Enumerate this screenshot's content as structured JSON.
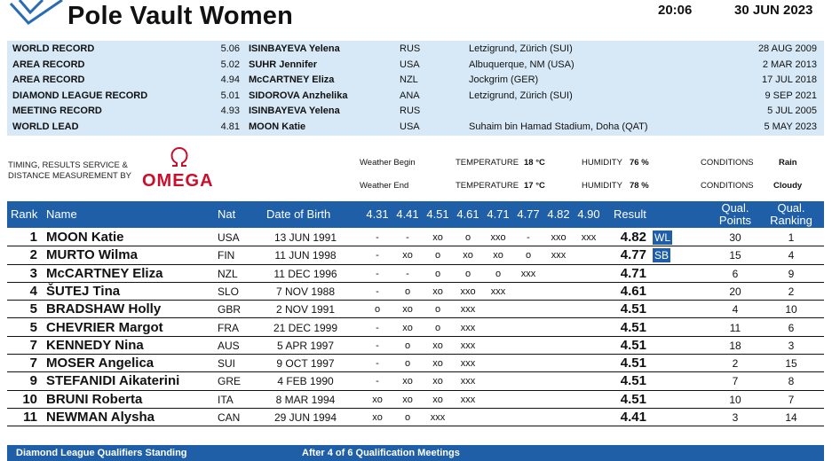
{
  "header": {
    "title": "Pole Vault Women",
    "time": "20:06",
    "date": "30 JUN 2023"
  },
  "records": [
    {
      "type": "WORLD RECORD",
      "mark": "5.06",
      "name": "ISINBAYEVA Yelena",
      "nat": "RUS",
      "venue": "Letzigrund, Zürich (SUI)",
      "date": "28 AUG 2009"
    },
    {
      "type": "AREA RECORD",
      "mark": "5.02",
      "name": "SUHR Jennifer",
      "nat": "USA",
      "venue": "Albuquerque, NM (USA)",
      "date": "2 MAR 2013"
    },
    {
      "type": "AREA RECORD",
      "mark": "4.94",
      "name": "McCARTNEY Eliza",
      "nat": "NZL",
      "venue": "Jockgrim (GER)",
      "date": "17 JUL 2018"
    },
    {
      "type": "DIAMOND LEAGUE RECORD",
      "mark": "5.01",
      "name": "SIDOROVA Anzhelika",
      "nat": "ANA",
      "venue": "Letzigrund, Zürich (SUI)",
      "date": "9 SEP 2021"
    },
    {
      "type": "MEETING RECORD",
      "mark": "4.93",
      "name": "ISINBAYEVA Yelena",
      "nat": "RUS",
      "venue": "",
      "date": "5 JUL 2005"
    },
    {
      "type": "WORLD LEAD",
      "mark": "4.81",
      "name": "MOON Katie",
      "nat": "USA",
      "venue": "Suhaim bin Hamad Stadium, Doha (QAT)",
      "date": "5 MAY 2023"
    }
  ],
  "timing": {
    "line1": "TIMING, RESULTS SERVICE &",
    "line2": "DISTANCE MEASUREMENT BY",
    "brand": "OMEGA"
  },
  "weather": {
    "begin_label": "Weather Begin",
    "end_label": "Weather End",
    "temp_label": "TEMPERATURE",
    "humidity_label": "HUMIDITY",
    "conditions_label": "CONDITIONS",
    "begin": {
      "temperature": "18 °C",
      "humidity": "76 %",
      "conditions": "Rain"
    },
    "end": {
      "temperature": "17 °C",
      "humidity": "78 %",
      "conditions": "Cloudy"
    }
  },
  "table": {
    "headers": {
      "rank": "Rank",
      "name": "Name",
      "nat": "Nat",
      "dob": "Date of Birth",
      "result": "Result",
      "qual_points_1": "Qual.",
      "qual_points_2": "Points",
      "qual_ranking_1": "Qual.",
      "qual_ranking_2": "Ranking"
    },
    "heights": [
      "4.31",
      "4.41",
      "4.51",
      "4.61",
      "4.71",
      "4.77",
      "4.82",
      "4.90"
    ],
    "rows": [
      {
        "rank": "1",
        "name": "MOON Katie",
        "nat": "USA",
        "dob": "13 JUN 1991",
        "attempts": [
          "-",
          "-",
          "xo",
          "o",
          "xxo",
          "-",
          "xxo",
          "xxx"
        ],
        "result": "4.82",
        "badge": "WL",
        "points": "30",
        "ranking": "1"
      },
      {
        "rank": "2",
        "name": "MURTO Wilma",
        "nat": "FIN",
        "dob": "11 JUN 1998",
        "attempts": [
          "-",
          "xo",
          "o",
          "xo",
          "xo",
          "o",
          "xxx",
          ""
        ],
        "result": "4.77",
        "badge": "SB",
        "points": "15",
        "ranking": "4"
      },
      {
        "rank": "3",
        "name": "McCARTNEY Eliza",
        "nat": "NZL",
        "dob": "11 DEC 1996",
        "attempts": [
          "-",
          "-",
          "o",
          "o",
          "o",
          "xxx",
          "",
          ""
        ],
        "result": "4.71",
        "badge": "",
        "points": "6",
        "ranking": "9"
      },
      {
        "rank": "4",
        "name": "ŠUTEJ Tina",
        "nat": "SLO",
        "dob": "7 NOV 1988",
        "attempts": [
          "-",
          "o",
          "xo",
          "xxo",
          "xxx",
          "",
          "",
          ""
        ],
        "result": "4.61",
        "badge": "",
        "points": "20",
        "ranking": "2"
      },
      {
        "rank": "5",
        "name": "BRADSHAW Holly",
        "nat": "GBR",
        "dob": "2 NOV 1991",
        "attempts": [
          "o",
          "xo",
          "o",
          "xxx",
          "",
          "",
          "",
          ""
        ],
        "result": "4.51",
        "badge": "",
        "points": "4",
        "ranking": "10"
      },
      {
        "rank": "5",
        "name": "CHEVRIER Margot",
        "nat": "FRA",
        "dob": "21 DEC 1999",
        "attempts": [
          "-",
          "xo",
          "o",
          "xxx",
          "",
          "",
          "",
          ""
        ],
        "result": "4.51",
        "badge": "",
        "points": "11",
        "ranking": "6"
      },
      {
        "rank": "7",
        "name": "KENNEDY Nina",
        "nat": "AUS",
        "dob": "5 APR 1997",
        "attempts": [
          "-",
          "o",
          "xo",
          "xxx",
          "",
          "",
          "",
          ""
        ],
        "result": "4.51",
        "badge": "",
        "points": "18",
        "ranking": "3"
      },
      {
        "rank": "7",
        "name": "MOSER Angelica",
        "nat": "SUI",
        "dob": "9 OCT 1997",
        "attempts": [
          "-",
          "o",
          "xo",
          "xxx",
          "",
          "",
          "",
          ""
        ],
        "result": "4.51",
        "badge": "",
        "points": "2",
        "ranking": "15"
      },
      {
        "rank": "9",
        "name": "STEFANIDI Aikaterini",
        "nat": "GRE",
        "dob": "4 FEB 1990",
        "attempts": [
          "-",
          "xo",
          "xo",
          "xxx",
          "",
          "",
          "",
          ""
        ],
        "result": "4.51",
        "badge": "",
        "points": "7",
        "ranking": "8"
      },
      {
        "rank": "10",
        "name": "BRUNI Roberta",
        "nat": "ITA",
        "dob": "8 MAR 1994",
        "attempts": [
          "xo",
          "xo",
          "xo",
          "xxx",
          "",
          "",
          "",
          ""
        ],
        "result": "4.51",
        "badge": "",
        "points": "10",
        "ranking": "7"
      },
      {
        "rank": "11",
        "name": "NEWMAN Alysha",
        "nat": "CAN",
        "dob": "29 JUN 1994",
        "attempts": [
          "xo",
          "o",
          "xxx",
          "",
          "",
          "",
          "",
          ""
        ],
        "result": "4.41",
        "badge": "",
        "points": "3",
        "ranking": "14"
      }
    ]
  },
  "footer": {
    "left": "Diamond League Qualifiers Standing",
    "center": "After 4 of 6 Qualification Meetings"
  }
}
